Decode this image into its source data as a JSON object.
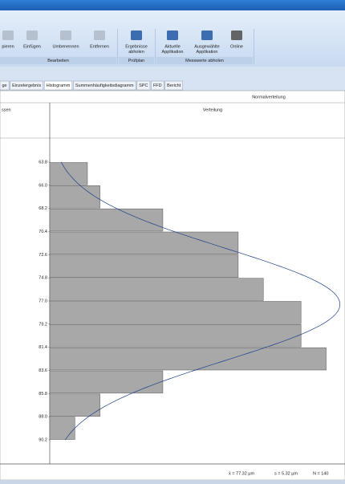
{
  "ribbon": {
    "buttons": [
      {
        "lines": [
          "pieren"
        ]
      },
      {
        "lines": [
          "Einfügen"
        ]
      },
      {
        "lines": [
          "Umbenennen"
        ]
      },
      {
        "lines": [
          "Entfernen"
        ]
      },
      {
        "lines": [
          "Ergebnisse",
          "abholen"
        ]
      },
      {
        "lines": [
          "Aktuelle",
          "Applikation"
        ]
      },
      {
        "lines": [
          "Ausgewählte",
          "Applikation"
        ]
      },
      {
        "lines": [
          "Online"
        ]
      }
    ],
    "groups": [
      "Bearbeiten",
      "Prüfplan",
      "Messwerte abholen"
    ]
  },
  "tabs": [
    "ge",
    "Einzelergebnis",
    "Histogramm",
    "Summenhäufigkeitsdiagramm",
    "SPC",
    "FFD",
    "Bericht"
  ],
  "active_tab": 2,
  "chart_data": {
    "type": "histogram",
    "title": "Normalverteilung",
    "column_headers": [
      "ssen",
      "Verteilung"
    ],
    "bins": [
      63.8,
      66.0,
      68.2,
      70.4,
      72.6,
      74.8,
      77.0,
      79.2,
      81.4,
      83.6,
      85.8,
      88.0,
      90.2
    ],
    "bin_labels": [
      "63.8",
      "66.0",
      "68.2",
      "70.4",
      "72.6",
      "74.8",
      "77.0",
      "79.2",
      "81.4",
      "83.6",
      "85.8",
      "88.0",
      "90.2"
    ],
    "values": [
      3,
      4,
      9,
      15,
      15,
      17,
      20,
      20,
      22,
      9,
      4,
      2
    ],
    "color": "#a8a8a8",
    "curve_color": "#1f3f8a",
    "xlim": [
      0,
      23.5
    ],
    "stats": [
      {
        "value": 77.32,
        "label": "x̄ = 77.32 µm"
      },
      {
        "value": 5.32,
        "label": "s = 5.32 µm"
      },
      {
        "value": 140,
        "label": "N = 140"
      }
    ]
  }
}
